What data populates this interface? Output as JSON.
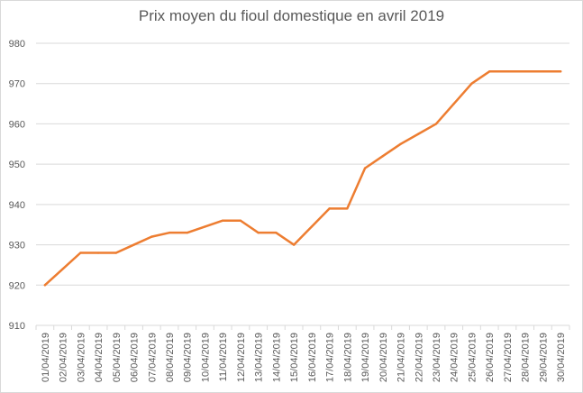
{
  "chart_data": {
    "type": "line",
    "title": "Prix moyen du fioul domestique en avril 2019",
    "xlabel": "",
    "ylabel": "",
    "ylim": [
      910,
      980
    ],
    "yticks": [
      910,
      920,
      930,
      940,
      950,
      960,
      970,
      980
    ],
    "grid": true,
    "legend": "none",
    "colors": {
      "line": "#ed7d31",
      "grid": "#d9d9d9",
      "text": "#595959"
    },
    "categories": [
      "01/04/2019",
      "02/04/2019",
      "03/04/2019",
      "04/04/2019",
      "05/04/2019",
      "06/04/2019",
      "07/04/2019",
      "08/04/2019",
      "09/04/2019",
      "10/04/2019",
      "11/04/2019",
      "12/04/2019",
      "13/04/2019",
      "14/04/2019",
      "15/04/2019",
      "16/04/2019",
      "17/04/2019",
      "18/04/2019",
      "19/04/2019",
      "20/04/2019",
      "21/04/2019",
      "22/04/2019",
      "23/04/2019",
      "24/04/2019",
      "25/04/2019",
      "26/04/2019",
      "27/04/2019",
      "28/04/2019",
      "29/04/2019",
      "30/04/2019"
    ],
    "series": [
      {
        "values": [
          920,
          924,
          928,
          928,
          928,
          930,
          932,
          933,
          933,
          934.5,
          936,
          936,
          933,
          933,
          930,
          934.5,
          939,
          939,
          949,
          952,
          955,
          957.5,
          960,
          965,
          970,
          973,
          973,
          973,
          973,
          973
        ]
      }
    ]
  }
}
